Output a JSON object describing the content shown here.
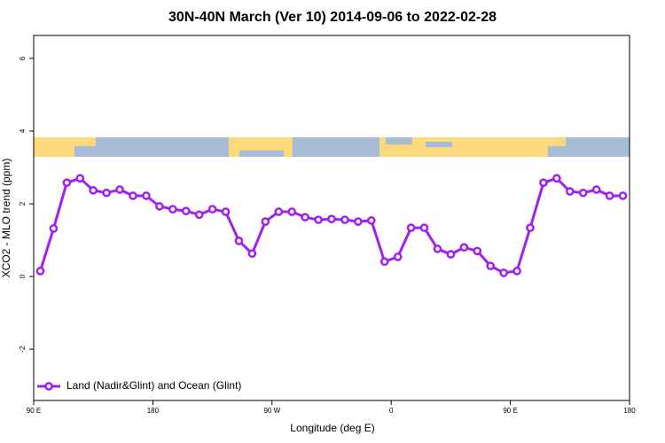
{
  "chart_data": {
    "type": "line",
    "title": "30N-40N March (Ver 10)   2014-09-06 to 2022-02-28",
    "x_label": "Longitude (deg E)",
    "y_label": "XCO2 - MLO trend (ppm)",
    "x": [
      95,
      105,
      115,
      125,
      135,
      145,
      155,
      165,
      175,
      185,
      195,
      205,
      215,
      225,
      235,
      245,
      255,
      265,
      275,
      285,
      295,
      305,
      315,
      325,
      335,
      345,
      355,
      365,
      375,
      385,
      395,
      405,
      415,
      425,
      435,
      445,
      455,
      465,
      475,
      485,
      495,
      505,
      515,
      525,
      535
    ],
    "series": [
      {
        "name": "Land (Nadir&Glint) and Ocean (Glint)",
        "color": "#a020f0",
        "values": [
          0.15,
          1.32,
          2.58,
          2.7,
          2.37,
          2.3,
          2.39,
          2.22,
          2.22,
          1.93,
          1.85,
          1.8,
          1.7,
          1.85,
          1.78,
          0.98,
          0.63,
          1.51,
          1.78,
          1.78,
          1.63,
          1.56,
          1.58,
          1.56,
          1.51,
          1.54,
          0.41,
          0.54,
          1.34,
          1.34,
          0.76,
          0.61,
          0.8,
          0.7,
          0.29,
          0.1,
          0.15,
          1.34,
          2.58,
          2.7,
          2.34,
          2.3,
          2.39,
          2.22,
          2.22
        ]
      }
    ],
    "xlim": [
      90,
      540
    ],
    "xticks": [
      {
        "value": 90,
        "label": "90 E"
      },
      180,
      {
        "value": 270,
        "label": "90 W"
      },
      {
        "value": 360,
        "label": "0"
      },
      {
        "value": 450,
        "label": "90 E"
      },
      {
        "value": 540,
        "label": "180"
      }
    ],
    "ylim": [
      -3.41,
      6.63
    ],
    "yticks": [
      -2,
      0,
      2,
      4,
      6
    ],
    "grid": false,
    "legend": "bottomleft"
  }
}
